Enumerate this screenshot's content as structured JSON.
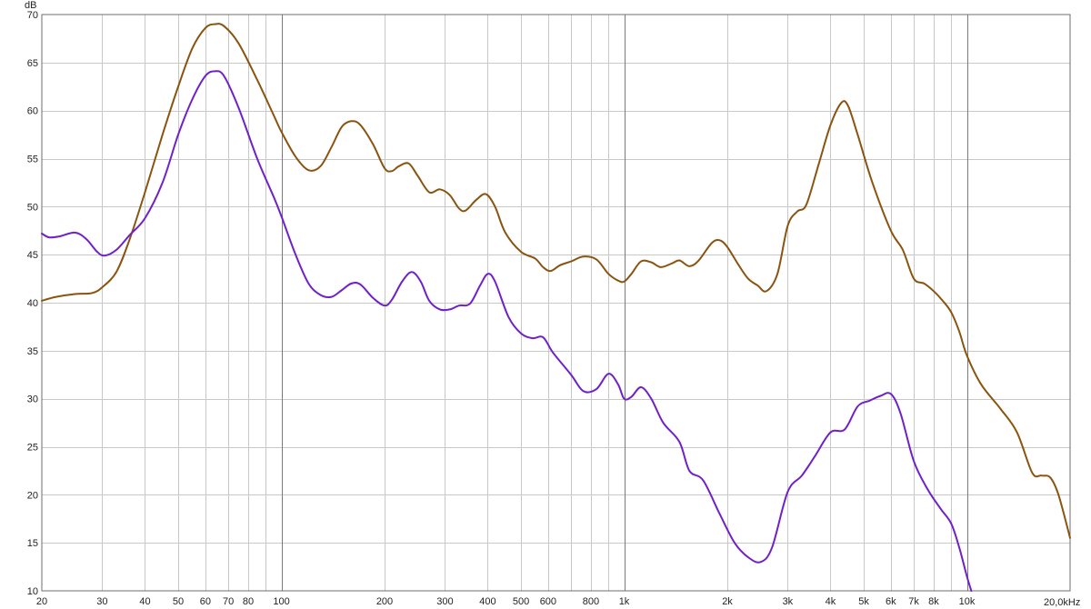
{
  "chart_data": {
    "type": "line",
    "title": "",
    "xlabel": "",
    "ylabel": "",
    "x_unit_label": "20,0kHz",
    "y_unit_label": "dB",
    "x_scale": "log",
    "xlim": [
      20,
      20000
    ],
    "ylim": [
      10,
      70
    ],
    "grid": true,
    "x_tick_labels": [
      {
        "f": 20,
        "label": "20"
      },
      {
        "f": 30,
        "label": "30"
      },
      {
        "f": 40,
        "label": "40"
      },
      {
        "f": 50,
        "label": "50"
      },
      {
        "f": 60,
        "label": "60"
      },
      {
        "f": 70,
        "label": "70"
      },
      {
        "f": 80,
        "label": "80"
      },
      {
        "f": 100,
        "label": "100"
      },
      {
        "f": 200,
        "label": "200"
      },
      {
        "f": 300,
        "label": "300"
      },
      {
        "f": 400,
        "label": "400"
      },
      {
        "f": 500,
        "label": "500"
      },
      {
        "f": 600,
        "label": "600"
      },
      {
        "f": 800,
        "label": "800"
      },
      {
        "f": 1000,
        "label": "1k"
      },
      {
        "f": 2000,
        "label": "2k"
      },
      {
        "f": 3000,
        "label": "3k"
      },
      {
        "f": 4000,
        "label": "4k"
      },
      {
        "f": 5000,
        "label": "5k"
      },
      {
        "f": 6000,
        "label": "6k"
      },
      {
        "f": 7000,
        "label": "7k"
      },
      {
        "f": 8000,
        "label": "8k"
      },
      {
        "f": 10000,
        "label": "10k"
      }
    ],
    "y_ticks": [
      10,
      15,
      20,
      25,
      30,
      35,
      40,
      45,
      50,
      55,
      60,
      65,
      70
    ],
    "series": [
      {
        "color": "#8a5410",
        "points": [
          [
            20,
            40.2
          ],
          [
            22,
            40.6
          ],
          [
            25,
            40.9
          ],
          [
            28,
            41.0
          ],
          [
            30,
            41.6
          ],
          [
            33,
            43.2
          ],
          [
            36,
            46.5
          ],
          [
            40,
            51.5
          ],
          [
            45,
            57.5
          ],
          [
            50,
            62.5
          ],
          [
            55,
            66.5
          ],
          [
            60,
            68.6
          ],
          [
            64,
            69.0
          ],
          [
            68,
            68.8
          ],
          [
            75,
            67.0
          ],
          [
            85,
            63.2
          ],
          [
            95,
            59.5
          ],
          [
            100,
            57.8
          ],
          [
            110,
            55.2
          ],
          [
            120,
            53.8
          ],
          [
            130,
            54.2
          ],
          [
            140,
            56.2
          ],
          [
            150,
            58.3
          ],
          [
            160,
            58.9
          ],
          [
            170,
            58.5
          ],
          [
            185,
            56.5
          ],
          [
            200,
            54.0
          ],
          [
            210,
            53.7
          ],
          [
            220,
            54.2
          ],
          [
            235,
            54.5
          ],
          [
            250,
            53.2
          ],
          [
            270,
            51.5
          ],
          [
            290,
            51.8
          ],
          [
            310,
            51.2
          ],
          [
            330,
            49.8
          ],
          [
            345,
            49.6
          ],
          [
            370,
            50.7
          ],
          [
            395,
            51.3
          ],
          [
            420,
            50.0
          ],
          [
            450,
            47.3
          ],
          [
            500,
            45.3
          ],
          [
            550,
            44.6
          ],
          [
            580,
            43.7
          ],
          [
            610,
            43.3
          ],
          [
            650,
            43.9
          ],
          [
            700,
            44.3
          ],
          [
            760,
            44.8
          ],
          [
            830,
            44.5
          ],
          [
            900,
            43.0
          ],
          [
            960,
            42.3
          ],
          [
            1000,
            42.2
          ],
          [
            1050,
            43.0
          ],
          [
            1120,
            44.3
          ],
          [
            1200,
            44.2
          ],
          [
            1280,
            43.7
          ],
          [
            1380,
            44.1
          ],
          [
            1450,
            44.4
          ],
          [
            1550,
            43.8
          ],
          [
            1650,
            44.4
          ],
          [
            1800,
            46.2
          ],
          [
            1900,
            46.5
          ],
          [
            2000,
            45.8
          ],
          [
            2150,
            44.0
          ],
          [
            2300,
            42.5
          ],
          [
            2450,
            41.8
          ],
          [
            2600,
            41.2
          ],
          [
            2800,
            43.0
          ],
          [
            3000,
            48.0
          ],
          [
            3200,
            49.5
          ],
          [
            3400,
            50.2
          ],
          [
            3700,
            54.5
          ],
          [
            4000,
            58.5
          ],
          [
            4300,
            60.8
          ],
          [
            4500,
            60.5
          ],
          [
            4800,
            57.5
          ],
          [
            5300,
            52.5
          ],
          [
            6000,
            47.5
          ],
          [
            6500,
            45.5
          ],
          [
            7000,
            42.5
          ],
          [
            7500,
            42.0
          ],
          [
            8000,
            41.2
          ],
          [
            8500,
            40.2
          ],
          [
            9000,
            39.0
          ],
          [
            9500,
            37.0
          ],
          [
            10000,
            34.5
          ],
          [
            11000,
            31.5
          ],
          [
            12500,
            29.0
          ],
          [
            14000,
            26.5
          ],
          [
            15500,
            22.3
          ],
          [
            16500,
            22.0
          ],
          [
            17500,
            21.8
          ],
          [
            18500,
            20.0
          ],
          [
            20000,
            15.5
          ]
        ]
      },
      {
        "color": "#7020c8",
        "points": [
          [
            20,
            47.2
          ],
          [
            21,
            46.8
          ],
          [
            22.5,
            46.9
          ],
          [
            25,
            47.3
          ],
          [
            27,
            46.6
          ],
          [
            29,
            45.3
          ],
          [
            30.5,
            44.9
          ],
          [
            33,
            45.5
          ],
          [
            36,
            47.0
          ],
          [
            40,
            48.8
          ],
          [
            45,
            52.5
          ],
          [
            50,
            57.5
          ],
          [
            55,
            61.2
          ],
          [
            60,
            63.6
          ],
          [
            64,
            64.1
          ],
          [
            68,
            63.6
          ],
          [
            75,
            60.3
          ],
          [
            85,
            55.0
          ],
          [
            95,
            51.0
          ],
          [
            100,
            49.0
          ],
          [
            110,
            45.0
          ],
          [
            120,
            42.0
          ],
          [
            130,
            40.8
          ],
          [
            140,
            40.6
          ],
          [
            150,
            41.3
          ],
          [
            160,
            42.0
          ],
          [
            170,
            41.9
          ],
          [
            185,
            40.5
          ],
          [
            200,
            39.7
          ],
          [
            210,
            40.3
          ],
          [
            225,
            42.2
          ],
          [
            240,
            43.2
          ],
          [
            255,
            42.2
          ],
          [
            270,
            40.2
          ],
          [
            290,
            39.3
          ],
          [
            310,
            39.3
          ],
          [
            330,
            39.7
          ],
          [
            355,
            39.9
          ],
          [
            380,
            41.8
          ],
          [
            400,
            43.0
          ],
          [
            420,
            42.2
          ],
          [
            460,
            38.5
          ],
          [
            500,
            36.8
          ],
          [
            540,
            36.3
          ],
          [
            580,
            36.4
          ],
          [
            620,
            34.8
          ],
          [
            700,
            32.5
          ],
          [
            760,
            30.8
          ],
          [
            830,
            31.0
          ],
          [
            900,
            32.6
          ],
          [
            960,
            31.5
          ],
          [
            1000,
            30.0
          ],
          [
            1050,
            30.2
          ],
          [
            1120,
            31.2
          ],
          [
            1200,
            30.0
          ],
          [
            1300,
            27.5
          ],
          [
            1450,
            25.5
          ],
          [
            1550,
            22.5
          ],
          [
            1700,
            21.5
          ],
          [
            1900,
            18.0
          ],
          [
            2100,
            15.0
          ],
          [
            2300,
            13.5
          ],
          [
            2500,
            13.0
          ],
          [
            2700,
            14.5
          ],
          [
            3000,
            20.3
          ],
          [
            3300,
            22.0
          ],
          [
            3600,
            24.0
          ],
          [
            4000,
            26.5
          ],
          [
            4400,
            26.8
          ],
          [
            4800,
            29.2
          ],
          [
            5200,
            29.8
          ],
          [
            5600,
            30.3
          ],
          [
            6000,
            30.5
          ],
          [
            6400,
            28.5
          ],
          [
            7000,
            23.5
          ],
          [
            7700,
            20.5
          ],
          [
            8400,
            18.5
          ],
          [
            9000,
            17.0
          ],
          [
            9500,
            14.5
          ],
          [
            10000,
            11.5
          ],
          [
            10300,
            10.0
          ]
        ]
      }
    ]
  }
}
